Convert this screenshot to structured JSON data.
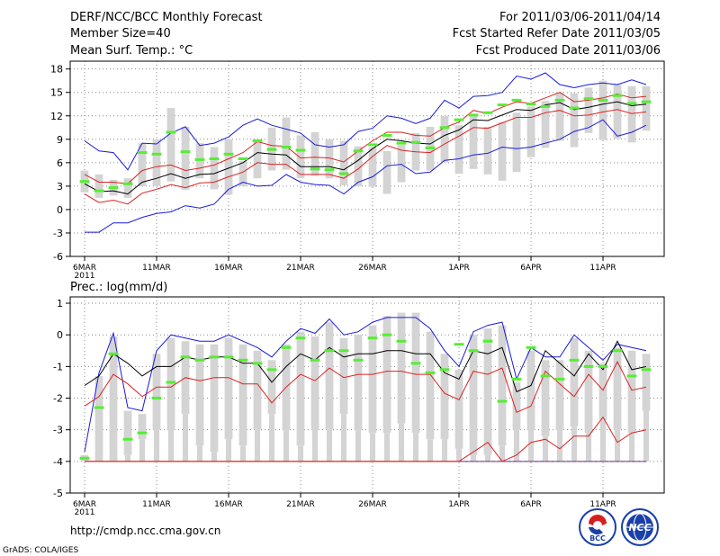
{
  "header": {
    "left": [
      "DERF/NCC/BCC Monthly Forecast",
      "Member Size=40",
      "Mean Surf. Temp.: °C"
    ],
    "right": [
      "For 2011/03/06-2011/04/14",
      "Fcst Started Refer Date 2011/03/05",
      "Fcst Produced Date 2011/03/06"
    ]
  },
  "footer": {
    "url": "http://cmdp.ncc.cma.gov.cn",
    "grads": "GrADS: COLA/IGES",
    "logo_left_text": "BCC",
    "logo_right_text": "NCC"
  },
  "colors": {
    "box": "#d4d4d4",
    "median": "#55ee33",
    "mean": "#000000",
    "spread": "#dd2222",
    "envelope": "#1a1add",
    "grid": "#8a8a8a",
    "zero_line": "#3355cc"
  },
  "chart_data": [
    {
      "type": "box_line",
      "title": "Mean Surf. Temp.: °C",
      "ylabel": "°C",
      "ylim": [
        -6,
        19
      ],
      "yticks": [
        -6,
        -3,
        0,
        3,
        6,
        9,
        12,
        15,
        18
      ],
      "day_count": 40,
      "x_tick_days": [
        0,
        5,
        10,
        15,
        20,
        26,
        31,
        36
      ],
      "x_tick_labels": [
        "6MAR",
        "11MAR",
        "16MAR",
        "21MAR",
        "26MAR",
        "1APR",
        "6APR",
        "11APR"
      ],
      "x_year_label": "2011",
      "box_low": [
        2.2,
        1.5,
        1.8,
        1.5,
        3,
        3,
        3.6,
        2.5,
        4,
        2.6,
        1.9,
        3,
        4,
        5,
        5.1,
        4,
        4.3,
        4,
        3.1,
        3,
        2.9,
        2,
        3.5,
        5,
        5,
        6.1,
        4.6,
        5.2,
        4.5,
        3.7,
        4.8,
        6.7,
        7.9,
        8.8,
        8,
        9.8,
        8.9,
        9.1,
        8.6,
        10.1
      ],
      "box_high": [
        5,
        4.5,
        3.8,
        4,
        8.5,
        9,
        13,
        10.6,
        8.5,
        8,
        9,
        6.2,
        8.7,
        10.5,
        11.8,
        9.5,
        9.9,
        9,
        8.8,
        8.1,
        8,
        7.5,
        8.3,
        9.8,
        10.6,
        12,
        10.8,
        12,
        10.6,
        11.2,
        12.4,
        13.2,
        13.9,
        15,
        14.9,
        15.6,
        16.5,
        16,
        15.8,
        15.8
      ],
      "median": [
        3.6,
        2.4,
        2.8,
        3.3,
        7.3,
        7.1,
        9.9,
        7.4,
        6.4,
        6.5,
        7.1,
        6.5,
        8.8,
        7.7,
        8,
        7.6,
        5.2,
        5.1,
        4.6,
        7.5,
        8.3,
        9.5,
        8.5,
        8.6,
        7.9,
        10.5,
        11.5,
        12.1,
        12.4,
        13.4,
        14,
        13.5,
        13.2,
        14,
        13,
        14.2,
        14,
        14.6,
        13.6,
        13.8
      ],
      "mean": [
        3.3,
        2.3,
        2.4,
        2,
        3.5,
        4,
        4.6,
        4,
        4.5,
        4.6,
        5.3,
        6,
        7.3,
        7.1,
        7,
        5.5,
        5.5,
        5.5,
        5.1,
        6.3,
        7.8,
        9,
        8.8,
        8.5,
        8.4,
        9.5,
        10.2,
        11.5,
        11.4,
        12.1,
        12.8,
        12.7,
        13.4,
        13.7,
        12.8,
        13.1,
        13.5,
        13.8,
        13.3,
        13.5
      ],
      "spread_upper": [
        4.5,
        3.5,
        3.5,
        3.3,
        5,
        5.5,
        5.7,
        5,
        5.3,
        5.7,
        6.5,
        7.3,
        8.7,
        8.2,
        8.1,
        6.6,
        6.7,
        6.6,
        6.1,
        7.5,
        8.8,
        9.9,
        9.9,
        9.5,
        9.4,
        10.5,
        11.2,
        12.7,
        12.3,
        13.1,
        13.8,
        13.6,
        14.3,
        15,
        13.8,
        14,
        14.3,
        14.8,
        14.3,
        14.5
      ],
      "spread_lower": [
        2,
        0.9,
        1.2,
        0.7,
        2.1,
        2.6,
        3.2,
        2.8,
        3.4,
        3.5,
        4.2,
        4.8,
        6,
        5.8,
        5.8,
        4.5,
        4.5,
        4.5,
        4,
        5.2,
        6.8,
        8.2,
        7.6,
        7.4,
        7.3,
        8.4,
        9.4,
        10.5,
        10.4,
        11.1,
        11.8,
        11.8,
        12.4,
        12.7,
        12,
        12.1,
        12.5,
        12.8,
        12.3,
        12.5
      ],
      "envelope_upper": [
        8.8,
        7.5,
        7.3,
        5.1,
        8.5,
        8.4,
        9.8,
        10.6,
        8.2,
        8.5,
        9.3,
        10.8,
        11.6,
        10.8,
        10.3,
        9.8,
        8.3,
        8,
        8.3,
        10,
        10.4,
        12,
        11.7,
        11,
        11.7,
        14,
        13,
        14.5,
        14.6,
        15,
        17.1,
        16.7,
        17.5,
        16,
        15.6,
        16,
        16.2,
        16,
        16.6,
        16
      ],
      "envelope_lower": [
        -2.9,
        -2.9,
        -1.7,
        -1.7,
        -1,
        -0.5,
        -0.3,
        0.5,
        0.2,
        0.7,
        2.6,
        3.5,
        3,
        3.1,
        4.5,
        3.5,
        3.2,
        3.1,
        2,
        3.5,
        4.2,
        5.6,
        5.8,
        4.6,
        4.8,
        6.3,
        6.5,
        7,
        7.2,
        8,
        7.8,
        8,
        8.5,
        9,
        10,
        10.5,
        11.5,
        9.4,
        9.9,
        10.8
      ]
    },
    {
      "type": "box_line",
      "title": "Prec.: log(mm/d)",
      "ylabel": "log(mm/d)",
      "ylim": [
        -5,
        1.2
      ],
      "yticks": [
        -5,
        -4,
        -3,
        -2,
        -1,
        0,
        1
      ],
      "day_count": 40,
      "x_tick_days": [
        0,
        5,
        10,
        15,
        20,
        26,
        31,
        36
      ],
      "x_tick_labels": [
        "6MAR",
        "11MAR",
        "16MAR",
        "21MAR",
        "26MAR",
        "1APR",
        "6APR",
        "11APR"
      ],
      "x_year_label": "2011",
      "floor_value": -4,
      "box_low": [
        -4,
        -4,
        -4,
        -4,
        -4,
        -4,
        -4,
        -4,
        -4,
        -4,
        -4,
        -4,
        -4,
        -4,
        -4,
        -4,
        -4,
        -4,
        -4,
        -4,
        -4,
        -4,
        -4,
        -4,
        -4,
        -4,
        -4,
        -4,
        -4,
        -4,
        -4,
        -4,
        -4,
        -4,
        -4,
        -4,
        -4,
        -4,
        -4,
        -4
      ],
      "box_high": [
        -3.8,
        -1.3,
        -0.05,
        -2.4,
        -2.5,
        -0.6,
        -0.1,
        -0.2,
        -0.3,
        -0.3,
        -0.1,
        -0.3,
        -0.5,
        -0.8,
        -0.3,
        0.1,
        -0.05,
        0.4,
        -0.1,
        0,
        0.3,
        0.6,
        0.7,
        0.7,
        0.1,
        -0.6,
        -1.1,
        0,
        0.2,
        0.3,
        -1.5,
        -0.5,
        -0.8,
        -0.8,
        -0.1,
        -0.5,
        -0.9,
        -0.4,
        -0.5,
        -0.6
      ],
      "box_low_visible": [
        -4,
        -4,
        -4,
        -3.8,
        -3.3,
        -3,
        -3,
        -2.5,
        -3.5,
        -3.7,
        -3.3,
        -3.5,
        -3,
        -2.5,
        -3,
        -3.5,
        -3,
        -3,
        -2.5,
        -3,
        -3.1,
        -3.1,
        -2.8,
        -3.1,
        -3.3,
        -3.3,
        -3.6,
        -3.8,
        -3.8,
        -3.5,
        -3,
        -3,
        -3.2,
        -3,
        -2.9,
        -3.1,
        -2.7,
        -3,
        -3.1,
        -2.4
      ],
      "median": [
        -3.9,
        -2.3,
        -0.6,
        -3.3,
        -3.1,
        -2,
        -1.5,
        -0.7,
        -0.8,
        -0.7,
        -0.7,
        -0.8,
        -0.9,
        -1.1,
        -0.4,
        -0.1,
        -0.8,
        -0.5,
        -0.5,
        -0.8,
        -0.1,
        0,
        -0.2,
        -0.9,
        -1.2,
        -1.1,
        -0.3,
        -0.5,
        -0.2,
        -2.1,
        -1.4,
        -0.4,
        -1.3,
        -1.4,
        -0.8,
        -1,
        -1,
        -0.5,
        -1.3,
        -1.1
      ],
      "mean": [
        -1.6,
        -1.3,
        -0.6,
        -0.9,
        -1.3,
        -1,
        -1,
        -0.7,
        -0.8,
        -0.7,
        -0.7,
        -0.9,
        -0.9,
        -1.5,
        -1,
        -0.6,
        -0.8,
        -0.4,
        -0.7,
        -0.6,
        -0.6,
        -0.5,
        -0.5,
        -0.6,
        -0.6,
        -1.2,
        -1.4,
        -0.5,
        -0.6,
        -0.4,
        -1.8,
        -1.6,
        -0.5,
        -0.9,
        -1.3,
        -0.6,
        -1.1,
        -0.2,
        -1.1,
        -1
      ]
    }
  ]
}
